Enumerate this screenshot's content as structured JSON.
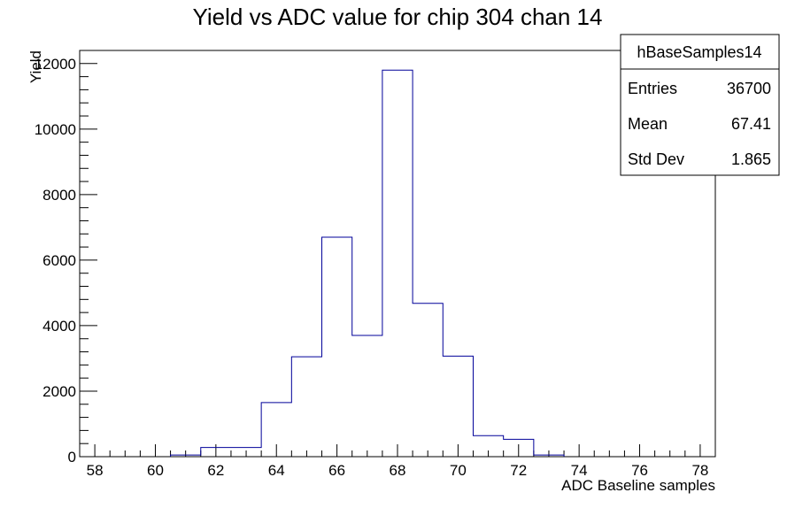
{
  "chart_data": {
    "type": "histogram",
    "title": "Yield vs ADC value for chip 304 chan 14",
    "xlabel": "ADC Baseline samples",
    "ylabel": "Yield",
    "xlim": [
      57.5,
      78.5
    ],
    "ylim": [
      0,
      12400
    ],
    "x_ticks": [
      58,
      60,
      62,
      64,
      66,
      68,
      70,
      72,
      74,
      76,
      78
    ],
    "x_tick_labels": [
      "58",
      "60",
      "62",
      "64",
      "66",
      "68",
      "70",
      "72",
      "74",
      "76",
      "78"
    ],
    "y_ticks": [
      0,
      2000,
      4000,
      6000,
      8000,
      10000,
      12000
    ],
    "y_tick_labels": [
      "0",
      "2000",
      "4000",
      "6000",
      "8000",
      "10000",
      "12000"
    ],
    "bin_width": 1,
    "bins": [
      {
        "low": 60.5,
        "high": 61.5,
        "value": 50
      },
      {
        "low": 61.5,
        "high": 62.5,
        "value": 280
      },
      {
        "low": 62.5,
        "high": 63.5,
        "value": 280
      },
      {
        "low": 63.5,
        "high": 64.5,
        "value": 1650
      },
      {
        "low": 64.5,
        "high": 65.5,
        "value": 3050
      },
      {
        "low": 65.5,
        "high": 66.5,
        "value": 6700
      },
      {
        "low": 66.5,
        "high": 67.5,
        "value": 3700
      },
      {
        "low": 67.5,
        "high": 68.5,
        "value": 11800
      },
      {
        "low": 68.5,
        "high": 69.5,
        "value": 4680
      },
      {
        "low": 69.5,
        "high": 70.5,
        "value": 3070
      },
      {
        "low": 70.5,
        "high": 71.5,
        "value": 640
      },
      {
        "low": 71.5,
        "high": 72.5,
        "value": 530
      },
      {
        "low": 72.5,
        "high": 73.5,
        "value": 50
      }
    ],
    "line_color": "#000099",
    "stats_box": {
      "name": "hBaseSamples14",
      "rows": [
        {
          "label": "Entries",
          "value": "36700"
        },
        {
          "label": "Mean",
          "value": "67.41"
        },
        {
          "label": "Std Dev",
          "value": "1.865"
        }
      ]
    }
  }
}
